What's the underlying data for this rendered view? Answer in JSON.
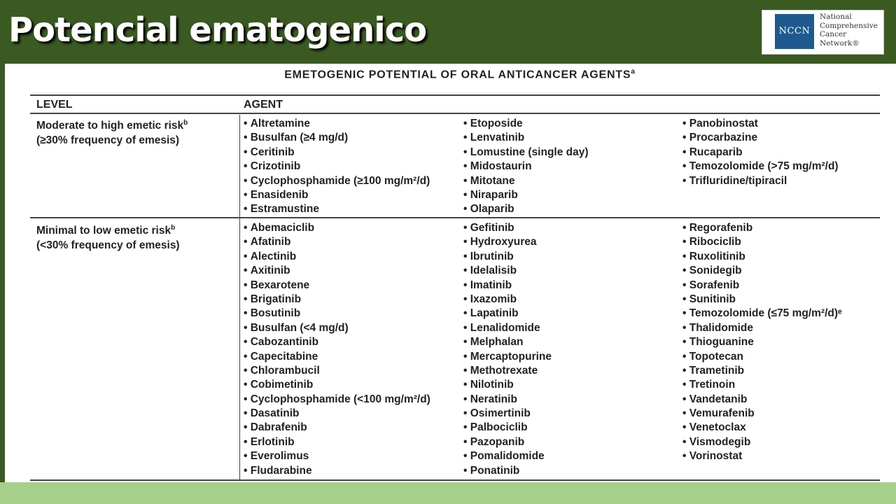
{
  "slide": {
    "title": "Potencial ematogenico"
  },
  "logo": {
    "abbr": "NCCN",
    "lines": [
      "National",
      "Comprehensive",
      "Cancer",
      "Network®"
    ]
  },
  "table": {
    "title": "EMETOGENIC POTENTIAL OF ORAL ANTICANCER AGENTS",
    "title_sup": "a",
    "header": {
      "level": "LEVEL",
      "agent": "AGENT"
    },
    "rows": [
      {
        "level": "Moderate to high emetic risk",
        "level_sup": "b",
        "frequency": "(≥30% frequency of emesis)",
        "columns": [
          [
            "Altretamine",
            "Busulfan (≥4 mg/d)",
            "Ceritinib",
            "Crizotinib",
            "Cyclophosphamide (≥100 mg/m²/d)",
            "Enasidenib",
            "Estramustine"
          ],
          [
            "Etoposide",
            "Lenvatinib",
            "Lomustine (single day)",
            "Midostaurin",
            "Mitotane",
            "Niraparib",
            "Olaparib"
          ],
          [
            "Panobinostat",
            "Procarbazine",
            "Rucaparib",
            "Temozolomide (>75 mg/m²/d)",
            "Trifluridine/tipiracil"
          ]
        ]
      },
      {
        "level": "Minimal to low emetic risk",
        "level_sup": "b",
        "frequency": "(<30% frequency of emesis)",
        "columns": [
          [
            "Abemaciclib",
            "Afatinib",
            "Alectinib",
            "Axitinib",
            "Bexarotene",
            "Brigatinib",
            "Bosutinib",
            "Busulfan (<4 mg/d)",
            "Cabozantinib",
            "Capecitabine",
            "Chlorambucil",
            "Cobimetinib",
            "Cyclophosphamide (<100 mg/m²/d)",
            "Dasatinib",
            "Dabrafenib",
            "Erlotinib",
            "Everolimus",
            "Fludarabine"
          ],
          [
            "Gefitinib",
            "Hydroxyurea",
            "Ibrutinib",
            "Idelalisib",
            "Imatinib",
            "Ixazomib",
            "Lapatinib",
            "Lenalidomide",
            "Melphalan",
            "Mercaptopurine",
            "Methotrexate",
            "Nilotinib",
            "Neratinib",
            "Osimertinib",
            "Palbociclib",
            "Pazopanib",
            "Pomalidomide",
            "Ponatinib"
          ],
          [
            "Regorafenib",
            "Ribociclib",
            "Ruxolitinib",
            "Sonidegib",
            "Sorafenib",
            "Sunitinib",
            "Temozolomide (≤75 mg/m²/d)ᵉ",
            "Thalidomide",
            "Thioguanine",
            "Topotecan",
            "Trametinib",
            "Tretinoin",
            "Vandetanib",
            "Vemurafenib",
            "Venetoclax",
            "Vismodegib",
            "Vorinostat"
          ]
        ]
      }
    ]
  },
  "colors": {
    "header_bg": "#3a5a22",
    "footer_bg": "#a6d08a",
    "logo_blue": "#1f5a8e"
  }
}
